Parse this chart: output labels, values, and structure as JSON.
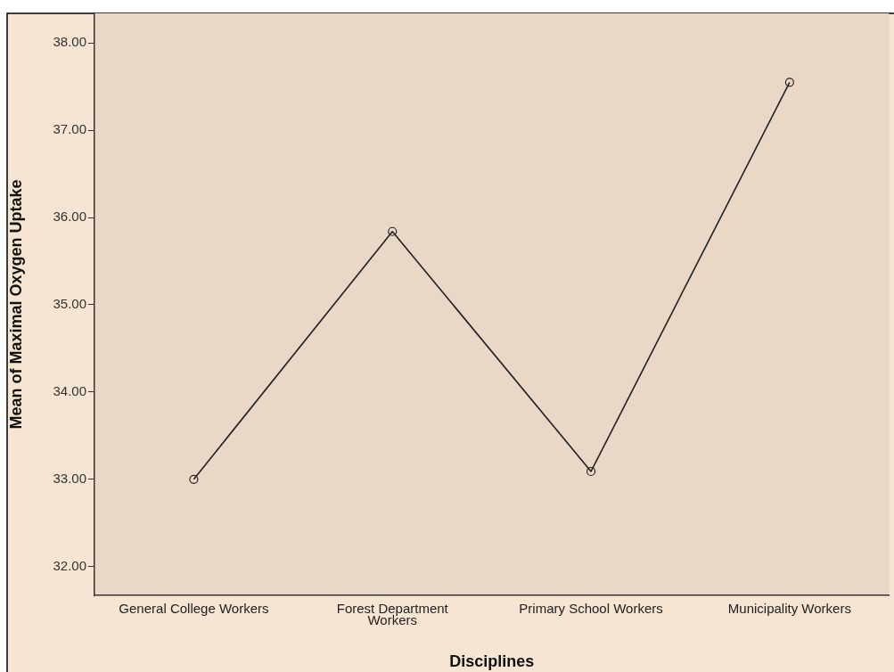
{
  "chart_data": {
    "type": "line",
    "xlabel": "Disciplines",
    "ylabel": "Mean of Maximal Oxygen Uptake",
    "categories": [
      "General College Workers",
      "Forest Department Workers",
      "Primary School Workers",
      "Municipality Workers"
    ],
    "series": [
      {
        "color": "#222222",
        "values": [
          33.0,
          35.84,
          33.09,
          37.55
        ]
      }
    ],
    "ylim": [
      31.67,
      38.34
    ],
    "yticks": [
      {
        "value": 32,
        "label": "32.00"
      },
      {
        "value": 33,
        "label": "33.00"
      },
      {
        "value": 34,
        "label": "34.00"
      },
      {
        "value": 35,
        "label": "35.00"
      },
      {
        "value": 36,
        "label": "36.00"
      },
      {
        "value": 37,
        "label": "37.00"
      },
      {
        "value": 38,
        "label": "38.00"
      }
    ],
    "grid": false,
    "legend": false,
    "marker": "circle",
    "line_style": "solid"
  }
}
